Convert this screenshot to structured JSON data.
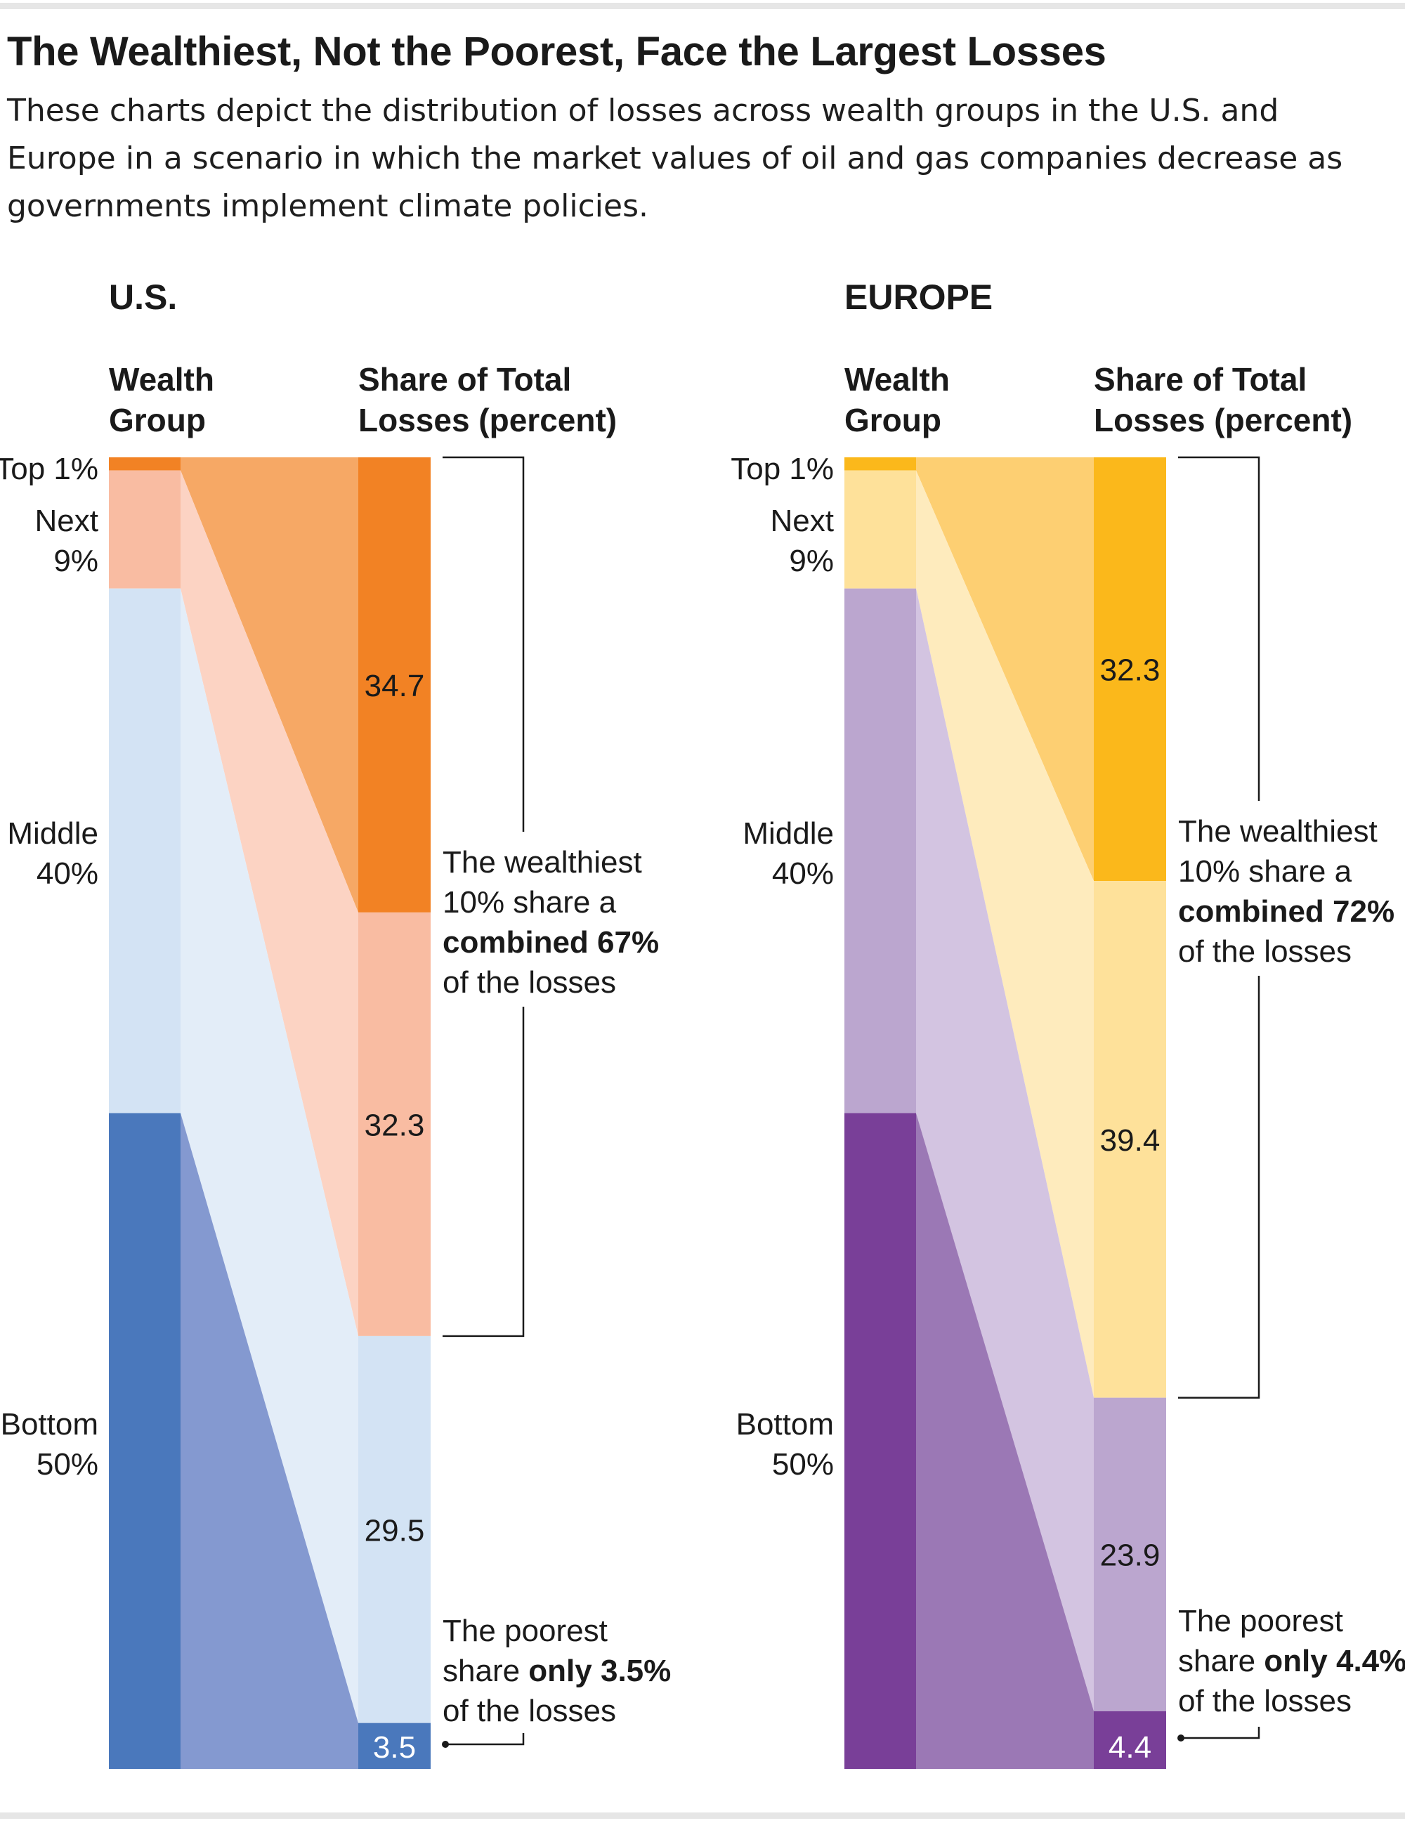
{
  "title": "The Wealthiest, Not the Poorest, Face the Largest Losses",
  "subtitle": "These charts depict the distribution of losses across wealth groups in the U.S. and Europe in a scenario in which the market values of oil and gas companies decrease as governments implement climate policies.",
  "chart_data": [
    {
      "type": "bar",
      "panel_title": "U.S.",
      "left_header": [
        "Wealth",
        "Group"
      ],
      "right_header": [
        "Share of Total",
        "Losses (percent)"
      ],
      "groups": [
        {
          "label": [
            "Top 1%"
          ],
          "population_share": 1,
          "loss_share": 34.7,
          "left_color": "#f28224",
          "band_color": "#f6a865",
          "right_color": "#f28224"
        },
        {
          "label": [
            "Next",
            "9%"
          ],
          "population_share": 9,
          "loss_share": 32.3,
          "left_color": "#f9bca2",
          "band_color": "#fcd3c3",
          "right_color": "#f9bca2"
        },
        {
          "label": [
            "Middle",
            "40%"
          ],
          "population_share": 40,
          "loss_share": 29.5,
          "left_color": "#d3e3f4",
          "band_color": "#e3edf8",
          "right_color": "#d3e3f4"
        },
        {
          "label": [
            "Bottom",
            "50%"
          ],
          "population_share": 50,
          "loss_share": 3.5,
          "left_color": "#4a78bc",
          "band_color": "#8499d0",
          "right_color": "#4a78bc"
        }
      ],
      "value_labels": [
        "34.7",
        "32.3",
        "29.5",
        "3.5"
      ],
      "annotation_top": {
        "lines": [
          "The wealthiest",
          "10% share a"
        ],
        "bold": "combined 67%",
        "tail": "of the losses"
      },
      "annotation_bottom": {
        "lines": [
          "The poorest"
        ],
        "prefix": "share ",
        "bold": "only 3.5%",
        "tail": "of the losses"
      }
    },
    {
      "type": "bar",
      "panel_title": "EUROPE",
      "left_header": [
        "Wealth",
        "Group"
      ],
      "right_header": [
        "Share of Total",
        "Losses (percent)"
      ],
      "groups": [
        {
          "label": [
            "Top 1%"
          ],
          "population_share": 1,
          "loss_share": 32.3,
          "left_color": "#fbb81b",
          "band_color": "#fdcf72",
          "right_color": "#fbb81b"
        },
        {
          "label": [
            "Next",
            "9%"
          ],
          "population_share": 9,
          "loss_share": 39.4,
          "left_color": "#fee19a",
          "band_color": "#feebbd",
          "right_color": "#fee19a"
        },
        {
          "label": [
            "Middle",
            "40%"
          ],
          "population_share": 40,
          "loss_share": 23.9,
          "left_color": "#bba6cf",
          "band_color": "#d3c4e1",
          "right_color": "#bba6cf"
        },
        {
          "label": [
            "Bottom",
            "50%"
          ],
          "population_share": 50,
          "loss_share": 4.4,
          "left_color": "#793f98",
          "band_color": "#9b78b5",
          "right_color": "#793f98"
        }
      ],
      "value_labels": [
        "32.3",
        "39.4",
        "23.9",
        "4.4"
      ],
      "annotation_top": {
        "lines": [
          "The wealthiest",
          "10% share a"
        ],
        "bold": "combined 72%",
        "tail": "of the losses"
      },
      "annotation_bottom": {
        "lines": [
          "The poorest"
        ],
        "prefix": "share ",
        "bold": "only 4.4%",
        "tail": "of the losses"
      }
    }
  ]
}
